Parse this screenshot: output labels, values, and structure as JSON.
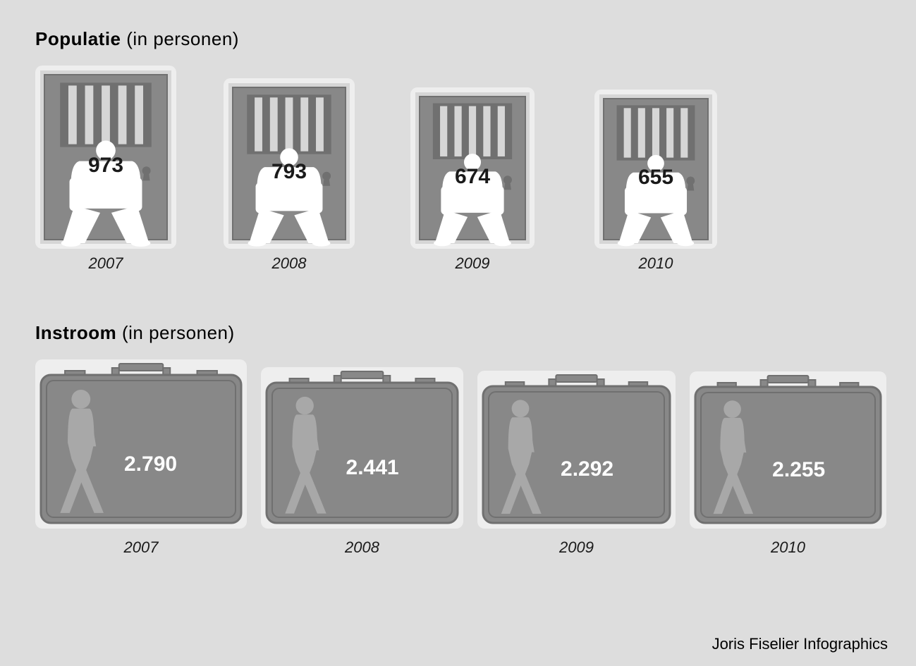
{
  "colors": {
    "page_bg": "#dddddd",
    "card_bg": "#eeeeee",
    "shape_fill": "#888888",
    "shape_stroke": "#707070",
    "bars_light": "#d6d6d6",
    "silhouette_white": "#ffffff",
    "silhouette_gray": "#a8a8a8",
    "text_dark": "#1a1a1a",
    "text_white": "#ffffff"
  },
  "populatie": {
    "title_bold": "Populatie",
    "title_light": " (in personen)",
    "font_size_title": 26,
    "value_font_size": 30,
    "year_font_size": 22,
    "card_bg": "#eeeeee",
    "card_radius": 10,
    "max_card_w": 200,
    "max_card_h": 260,
    "items": [
      {
        "year": "2007",
        "value": "973",
        "scale": 1.0
      },
      {
        "year": "2008",
        "value": "793",
        "scale": 0.93
      },
      {
        "year": "2009",
        "value": "674",
        "scale": 0.88
      },
      {
        "year": "2010",
        "value": "655",
        "scale": 0.87
      }
    ]
  },
  "instroom": {
    "title_bold": "Instroom",
    "title_light": " (in personen)",
    "card_bg": "#eeeeee",
    "card_radius": 10,
    "max_card_w": 300,
    "max_card_h": 240,
    "value_font_size": 30,
    "items": [
      {
        "year": "2007",
        "value": "2.790",
        "scale": 1.0
      },
      {
        "year": "2008",
        "value": "2.441",
        "scale": 0.955
      },
      {
        "year": "2009",
        "value": "2.292",
        "scale": 0.935
      },
      {
        "year": "2010",
        "value": "2.255",
        "scale": 0.93
      }
    ]
  },
  "credit": "Joris Fiselier Infographics"
}
